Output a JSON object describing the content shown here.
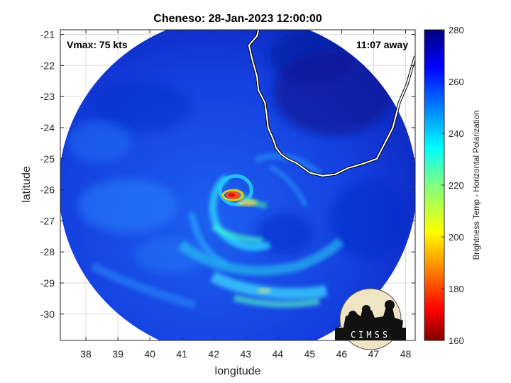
{
  "title": "Cheneso: 28-Jan-2023 12:00:00",
  "vmax_label": "Vmax: 75 kts",
  "away_label": "11:07 away",
  "logo_text": "CIMSS",
  "colors": {
    "frame": "#262626",
    "grid": "#dcdcdc",
    "coast": "#ffffff"
  },
  "chart_data": {
    "type": "heatmap",
    "title": "Cheneso: 28-Jan-2023 12:00:00",
    "xlabel": "longitude",
    "ylabel": "latitude",
    "xlim": [
      37.2,
      48.3
    ],
    "ylim": [
      -30.85,
      -20.85
    ],
    "x_ticks": [
      38,
      39,
      40,
      41,
      42,
      43,
      44,
      45,
      46,
      47,
      48
    ],
    "y_ticks": [
      -21,
      -22,
      -23,
      -24,
      -25,
      -26,
      -27,
      -28,
      -29,
      -30
    ],
    "grid": true,
    "swath": {
      "center_lon": 42.75,
      "center_lat": -25.9,
      "radius_lon": 5.6,
      "radius_lat": 5.5
    },
    "eye": {
      "lon": 42.6,
      "lat": -26.15
    },
    "colorbar": {
      "label": "Brightness Temp - Horizontal Polarization",
      "min": 160,
      "max": 280,
      "ticks": [
        160,
        180,
        200,
        220,
        240,
        260,
        280
      ]
    },
    "coastline_lonlat": [
      [
        43.4,
        -20.85
      ],
      [
        43.35,
        -21.05
      ],
      [
        43.1,
        -21.35
      ],
      [
        43.2,
        -21.8
      ],
      [
        43.35,
        -22.35
      ],
      [
        43.4,
        -22.8
      ],
      [
        43.6,
        -23.2
      ],
      [
        43.65,
        -23.55
      ],
      [
        43.7,
        -24.0
      ],
      [
        43.85,
        -24.35
      ],
      [
        43.95,
        -24.65
      ],
      [
        44.1,
        -24.85
      ],
      [
        44.3,
        -25.0
      ],
      [
        44.6,
        -25.15
      ],
      [
        45.0,
        -25.45
      ],
      [
        45.4,
        -25.55
      ],
      [
        45.8,
        -25.5
      ],
      [
        46.2,
        -25.3
      ],
      [
        46.7,
        -25.15
      ],
      [
        47.1,
        -25.0
      ],
      [
        47.4,
        -24.4
      ],
      [
        47.6,
        -24.0
      ],
      [
        47.8,
        -23.2
      ],
      [
        48.05,
        -22.6
      ],
      [
        48.3,
        -21.7
      ]
    ]
  }
}
